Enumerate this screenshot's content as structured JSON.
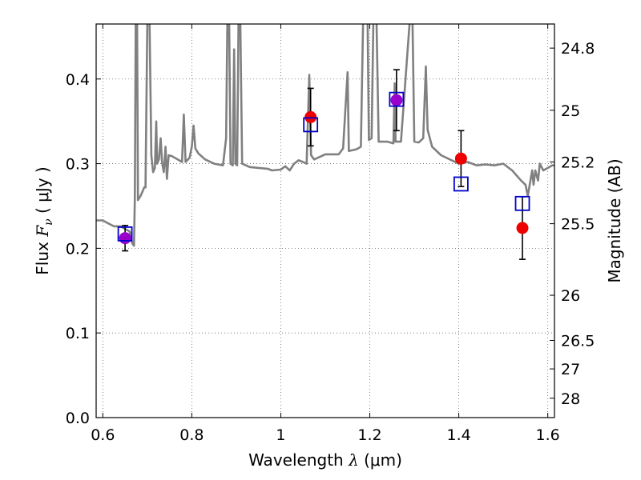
{
  "chart_data": {
    "type": "scatter",
    "xlabel": "Wavelength  λ (μm)",
    "xlabel_parts": {
      "prefix": "Wavelength  ",
      "symbol": "λ",
      "unit": "(μm)"
    },
    "ylabel": "Flux  Fν ( μJy )",
    "ylabel_parts": {
      "prefix": "Flux  ",
      "symbol": "F",
      "subscript": "ν",
      "unit": "( μJy )"
    },
    "y2label": "Magnitude (AB)",
    "xlim": [
      0.585,
      1.615
    ],
    "ylim": [
      0.0,
      0.465
    ],
    "grid": true,
    "x_ticks": [
      {
        "value": 0.6,
        "label": "0.6"
      },
      {
        "value": 0.8,
        "label": "0.8"
      },
      {
        "value": 1.0,
        "label": "1"
      },
      {
        "value": 1.2,
        "label": "1.2"
      },
      {
        "value": 1.4,
        "label": "1.4"
      },
      {
        "value": 1.6,
        "label": "1.6"
      }
    ],
    "y_ticks": [
      {
        "value": 0.0,
        "label": "0.0"
      },
      {
        "value": 0.1,
        "label": "0.1"
      },
      {
        "value": 0.2,
        "label": "0.2"
      },
      {
        "value": 0.3,
        "label": "0.3"
      },
      {
        "value": 0.4,
        "label": "0.4"
      }
    ],
    "y2_ticks": [
      {
        "value": 24.8,
        "label": "24.8"
      },
      {
        "value": 25.0,
        "label": "25"
      },
      {
        "value": 25.2,
        "label": "25.2"
      },
      {
        "value": 25.5,
        "label": "25.5"
      },
      {
        "value": 26.0,
        "label": "26"
      },
      {
        "value": 26.5,
        "label": "26.5"
      },
      {
        "value": 27.0,
        "label": "27"
      },
      {
        "value": 28.0,
        "label": "28"
      }
    ],
    "colors": {
      "spectrum": "#808080",
      "observed": "#ee0000",
      "model": "#0000cc",
      "errorbar": "#000000",
      "overlap": "#9900cc"
    },
    "series": [
      {
        "kind": "line",
        "points": [
          [
            0.585,
            0.233
          ],
          [
            0.6,
            0.233
          ],
          [
            0.61,
            0.23
          ],
          [
            0.625,
            0.226
          ],
          [
            0.64,
            0.226
          ],
          [
            0.65,
            0.223
          ],
          [
            0.66,
            0.22
          ],
          [
            0.666,
            0.206
          ],
          [
            0.67,
            0.203
          ],
          [
            0.672,
            0.26
          ],
          [
            0.674,
            0.47
          ],
          [
            0.677,
            0.47
          ],
          [
            0.679,
            0.257
          ],
          [
            0.685,
            0.262
          ],
          [
            0.69,
            0.268
          ],
          [
            0.693,
            0.272
          ],
          [
            0.696,
            0.272
          ],
          [
            0.7,
            0.47
          ],
          [
            0.705,
            0.47
          ],
          [
            0.709,
            0.31
          ],
          [
            0.713,
            0.29
          ],
          [
            0.717,
            0.295
          ],
          [
            0.72,
            0.35
          ],
          [
            0.722,
            0.3
          ],
          [
            0.726,
            0.305
          ],
          [
            0.73,
            0.33
          ],
          [
            0.733,
            0.302
          ],
          [
            0.737,
            0.29
          ],
          [
            0.741,
            0.32
          ],
          [
            0.744,
            0.282
          ],
          [
            0.748,
            0.31
          ],
          [
            0.755,
            0.309
          ],
          [
            0.765,
            0.306
          ],
          [
            0.778,
            0.302
          ],
          [
            0.782,
            0.358
          ],
          [
            0.786,
            0.302
          ],
          [
            0.795,
            0.307
          ],
          [
            0.8,
            0.32
          ],
          [
            0.804,
            0.345
          ],
          [
            0.808,
            0.318
          ],
          [
            0.815,
            0.312
          ],
          [
            0.83,
            0.305
          ],
          [
            0.85,
            0.3
          ],
          [
            0.87,
            0.298
          ],
          [
            0.877,
            0.33
          ],
          [
            0.88,
            0.47
          ],
          [
            0.884,
            0.47
          ],
          [
            0.887,
            0.3
          ],
          [
            0.892,
            0.298
          ],
          [
            0.895,
            0.435
          ],
          [
            0.898,
            0.3
          ],
          [
            0.902,
            0.298
          ],
          [
            0.905,
            0.47
          ],
          [
            0.909,
            0.47
          ],
          [
            0.913,
            0.3
          ],
          [
            0.93,
            0.296
          ],
          [
            0.95,
            0.295
          ],
          [
            0.97,
            0.294
          ],
          [
            0.98,
            0.292
          ],
          [
            1.0,
            0.293
          ],
          [
            1.01,
            0.297
          ],
          [
            1.02,
            0.292
          ],
          [
            1.03,
            0.3
          ],
          [
            1.04,
            0.304
          ],
          [
            1.05,
            0.302
          ],
          [
            1.058,
            0.3
          ],
          [
            1.064,
            0.405
          ],
          [
            1.068,
            0.31
          ],
          [
            1.075,
            0.305
          ],
          [
            1.1,
            0.311
          ],
          [
            1.13,
            0.311
          ],
          [
            1.14,
            0.318
          ],
          [
            1.15,
            0.408
          ],
          [
            1.153,
            0.315
          ],
          [
            1.17,
            0.317
          ],
          [
            1.18,
            0.32
          ],
          [
            1.185,
            0.47
          ],
          [
            1.195,
            0.47
          ],
          [
            1.198,
            0.328
          ],
          [
            1.204,
            0.33
          ],
          [
            1.208,
            0.47
          ],
          [
            1.215,
            0.47
          ],
          [
            1.22,
            0.326
          ],
          [
            1.24,
            0.326
          ],
          [
            1.253,
            0.324
          ],
          [
            1.256,
            0.395
          ],
          [
            1.258,
            0.326
          ],
          [
            1.27,
            0.326
          ],
          [
            1.29,
            0.47
          ],
          [
            1.296,
            0.47
          ],
          [
            1.3,
            0.326
          ],
          [
            1.31,
            0.325
          ],
          [
            1.32,
            0.33
          ],
          [
            1.326,
            0.415
          ],
          [
            1.33,
            0.34
          ],
          [
            1.34,
            0.32
          ],
          [
            1.36,
            0.31
          ],
          [
            1.38,
            0.305
          ],
          [
            1.4,
            0.3
          ],
          [
            1.42,
            0.302
          ],
          [
            1.44,
            0.298
          ],
          [
            1.46,
            0.299
          ],
          [
            1.48,
            0.298
          ],
          [
            1.5,
            0.3
          ],
          [
            1.52,
            0.292
          ],
          [
            1.54,
            0.28
          ],
          [
            1.55,
            0.275
          ],
          [
            1.555,
            0.262
          ],
          [
            1.565,
            0.292
          ],
          [
            1.568,
            0.275
          ],
          [
            1.572,
            0.292
          ],
          [
            1.578,
            0.28
          ],
          [
            1.582,
            0.3
          ],
          [
            1.59,
            0.292
          ],
          [
            1.6,
            0.295
          ],
          [
            1.61,
            0.298
          ],
          [
            1.615,
            0.298
          ]
        ]
      },
      {
        "kind": "points",
        "marker": "circle",
        "points": [
          {
            "x": 0.65,
            "y": 0.212,
            "yerr": 0.015
          },
          {
            "x": 1.067,
            "y": 0.355,
            "yerr": 0.034
          },
          {
            "x": 1.26,
            "y": 0.375,
            "yerr": 0.036
          },
          {
            "x": 1.405,
            "y": 0.306,
            "yerr": 0.033
          },
          {
            "x": 1.543,
            "y": 0.224,
            "yerr": 0.037
          }
        ]
      },
      {
        "kind": "points",
        "marker": "square",
        "points": [
          {
            "x": 0.65,
            "y": 0.217
          },
          {
            "x": 1.067,
            "y": 0.346
          },
          {
            "x": 1.26,
            "y": 0.376
          },
          {
            "x": 1.405,
            "y": 0.276
          },
          {
            "x": 1.543,
            "y": 0.253
          }
        ]
      }
    ]
  }
}
